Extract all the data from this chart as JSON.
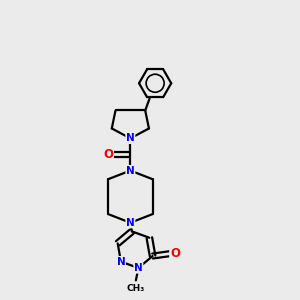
{
  "background_color": "#ebebeb",
  "bond_color": "#000000",
  "N_color": "#0000ee",
  "O_color": "#ee0000",
  "line_width": 1.6,
  "figsize": [
    3.0,
    3.0
  ],
  "dpi": 100,
  "xlim": [
    0.25,
    0.75
  ],
  "ylim": [
    0.02,
    0.98
  ]
}
